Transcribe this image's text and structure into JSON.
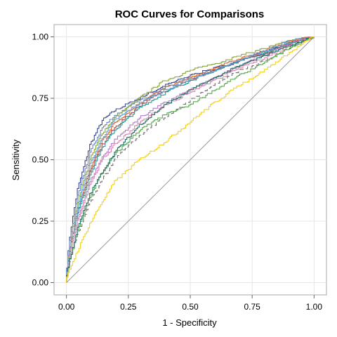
{
  "chart_data": {
    "type": "line",
    "title": "ROC Curves for Comparisons",
    "xlabel": "1 - Specificity",
    "ylabel": "Sensitivity",
    "xlim": [
      -0.05,
      1.05
    ],
    "ylim": [
      -0.05,
      1.05
    ],
    "xticks": [
      "0.00",
      "0.25",
      "0.50",
      "0.75",
      "1.00"
    ],
    "yticks": [
      "0.00",
      "0.25",
      "0.50",
      "0.75",
      "1.00"
    ],
    "xtick_values": [
      0,
      0.25,
      0.5,
      0.75,
      1
    ],
    "ytick_values": [
      0,
      0.25,
      0.5,
      0.75,
      1
    ],
    "grid": true,
    "reference_line": {
      "x": [
        0,
        1
      ],
      "y": [
        0,
        1
      ],
      "color": "#9a9a9a"
    },
    "series": [
      {
        "color": "#3b4a8c",
        "dash": "",
        "x": [
          0,
          0.02,
          0.05,
          0.1,
          0.15,
          0.2,
          0.3,
          0.4,
          0.5,
          0.6,
          0.7,
          0.8,
          0.9,
          1
        ],
        "y": [
          0,
          0.2,
          0.38,
          0.56,
          0.66,
          0.7,
          0.75,
          0.8,
          0.84,
          0.87,
          0.9,
          0.94,
          0.97,
          1
        ]
      },
      {
        "color": "#6d86c4",
        "dash": "",
        "x": [
          0,
          0.02,
          0.05,
          0.1,
          0.15,
          0.2,
          0.3,
          0.4,
          0.5,
          0.6,
          0.7,
          0.8,
          0.9,
          1
        ],
        "y": [
          0,
          0.18,
          0.35,
          0.53,
          0.63,
          0.68,
          0.74,
          0.79,
          0.83,
          0.86,
          0.9,
          0.93,
          0.97,
          1
        ]
      },
      {
        "color": "#8aa63a",
        "dash": "",
        "x": [
          0,
          0.02,
          0.05,
          0.1,
          0.15,
          0.2,
          0.3,
          0.4,
          0.5,
          0.6,
          0.7,
          0.8,
          0.9,
          1
        ],
        "y": [
          0,
          0.16,
          0.33,
          0.5,
          0.61,
          0.67,
          0.75,
          0.82,
          0.86,
          0.89,
          0.92,
          0.95,
          0.98,
          1
        ]
      },
      {
        "color": "#d66a2c",
        "dash": "",
        "x": [
          0,
          0.02,
          0.05,
          0.1,
          0.15,
          0.2,
          0.3,
          0.4,
          0.5,
          0.6,
          0.7,
          0.8,
          0.9,
          1
        ],
        "y": [
          0,
          0.15,
          0.3,
          0.46,
          0.58,
          0.65,
          0.73,
          0.79,
          0.83,
          0.87,
          0.91,
          0.94,
          0.98,
          1
        ]
      },
      {
        "color": "#a0485c",
        "dash": "",
        "x": [
          0,
          0.02,
          0.05,
          0.1,
          0.15,
          0.2,
          0.3,
          0.4,
          0.5,
          0.6,
          0.7,
          0.8,
          0.9,
          1
        ],
        "y": [
          0,
          0.14,
          0.29,
          0.45,
          0.56,
          0.63,
          0.72,
          0.78,
          0.82,
          0.86,
          0.9,
          0.93,
          0.97,
          1
        ]
      },
      {
        "color": "#2d9c8f",
        "dash": "",
        "x": [
          0,
          0.02,
          0.05,
          0.1,
          0.15,
          0.2,
          0.3,
          0.4,
          0.5,
          0.6,
          0.7,
          0.8,
          0.9,
          1
        ],
        "y": [
          0,
          0.14,
          0.28,
          0.44,
          0.55,
          0.62,
          0.71,
          0.77,
          0.82,
          0.86,
          0.9,
          0.93,
          0.97,
          1
        ]
      },
      {
        "color": "#5c9bd6",
        "dash": "",
        "x": [
          0,
          0.02,
          0.05,
          0.1,
          0.15,
          0.2,
          0.3,
          0.4,
          0.5,
          0.6,
          0.7,
          0.8,
          0.9,
          1
        ],
        "y": [
          0,
          0.15,
          0.31,
          0.48,
          0.59,
          0.66,
          0.73,
          0.78,
          0.82,
          0.86,
          0.9,
          0.94,
          0.98,
          1
        ]
      },
      {
        "color": "#b37cc9",
        "dash": "",
        "x": [
          0,
          0.02,
          0.05,
          0.1,
          0.15,
          0.2,
          0.3,
          0.4,
          0.5,
          0.6,
          0.7,
          0.8,
          0.9,
          1
        ],
        "y": [
          0,
          0.12,
          0.26,
          0.41,
          0.51,
          0.58,
          0.67,
          0.73,
          0.78,
          0.83,
          0.88,
          0.92,
          0.97,
          1
        ]
      },
      {
        "color": "#d98ab0",
        "dash": "",
        "x": [
          0,
          0.02,
          0.05,
          0.1,
          0.15,
          0.2,
          0.3,
          0.4,
          0.5,
          0.6,
          0.7,
          0.8,
          0.9,
          1
        ],
        "y": [
          0,
          0.12,
          0.25,
          0.4,
          0.5,
          0.56,
          0.65,
          0.72,
          0.77,
          0.82,
          0.87,
          0.91,
          0.96,
          1
        ]
      },
      {
        "color": "#6b6b6b",
        "dash": "6,4",
        "x": [
          0,
          0.02,
          0.05,
          0.1,
          0.15,
          0.2,
          0.3,
          0.4,
          0.5,
          0.6,
          0.7,
          0.8,
          0.9,
          1
        ],
        "y": [
          0,
          0.09,
          0.2,
          0.33,
          0.42,
          0.5,
          0.6,
          0.67,
          0.74,
          0.8,
          0.86,
          0.9,
          0.95,
          1
        ]
      },
      {
        "color": "#5aa84e",
        "dash": "",
        "x": [
          0,
          0.02,
          0.05,
          0.1,
          0.15,
          0.2,
          0.3,
          0.4,
          0.5,
          0.6,
          0.7,
          0.8,
          0.9,
          1
        ],
        "y": [
          0,
          0.1,
          0.21,
          0.35,
          0.45,
          0.52,
          0.62,
          0.68,
          0.72,
          0.78,
          0.84,
          0.89,
          0.95,
          1
        ]
      },
      {
        "color": "#1f6b60",
        "dash": "",
        "x": [
          0,
          0.02,
          0.05,
          0.1,
          0.15,
          0.2,
          0.3,
          0.4,
          0.5,
          0.6,
          0.7,
          0.8,
          0.9,
          1
        ],
        "y": [
          0,
          0.1,
          0.22,
          0.36,
          0.45,
          0.53,
          0.64,
          0.72,
          0.78,
          0.83,
          0.88,
          0.92,
          0.96,
          1
        ]
      },
      {
        "color": "#f2d024",
        "dash": "",
        "x": [
          0,
          0.02,
          0.05,
          0.1,
          0.15,
          0.2,
          0.3,
          0.4,
          0.5,
          0.6,
          0.7,
          0.8,
          0.9,
          1
        ],
        "y": [
          0,
          0.06,
          0.13,
          0.24,
          0.33,
          0.41,
          0.5,
          0.57,
          0.65,
          0.73,
          0.8,
          0.86,
          0.93,
          1
        ]
      }
    ]
  }
}
